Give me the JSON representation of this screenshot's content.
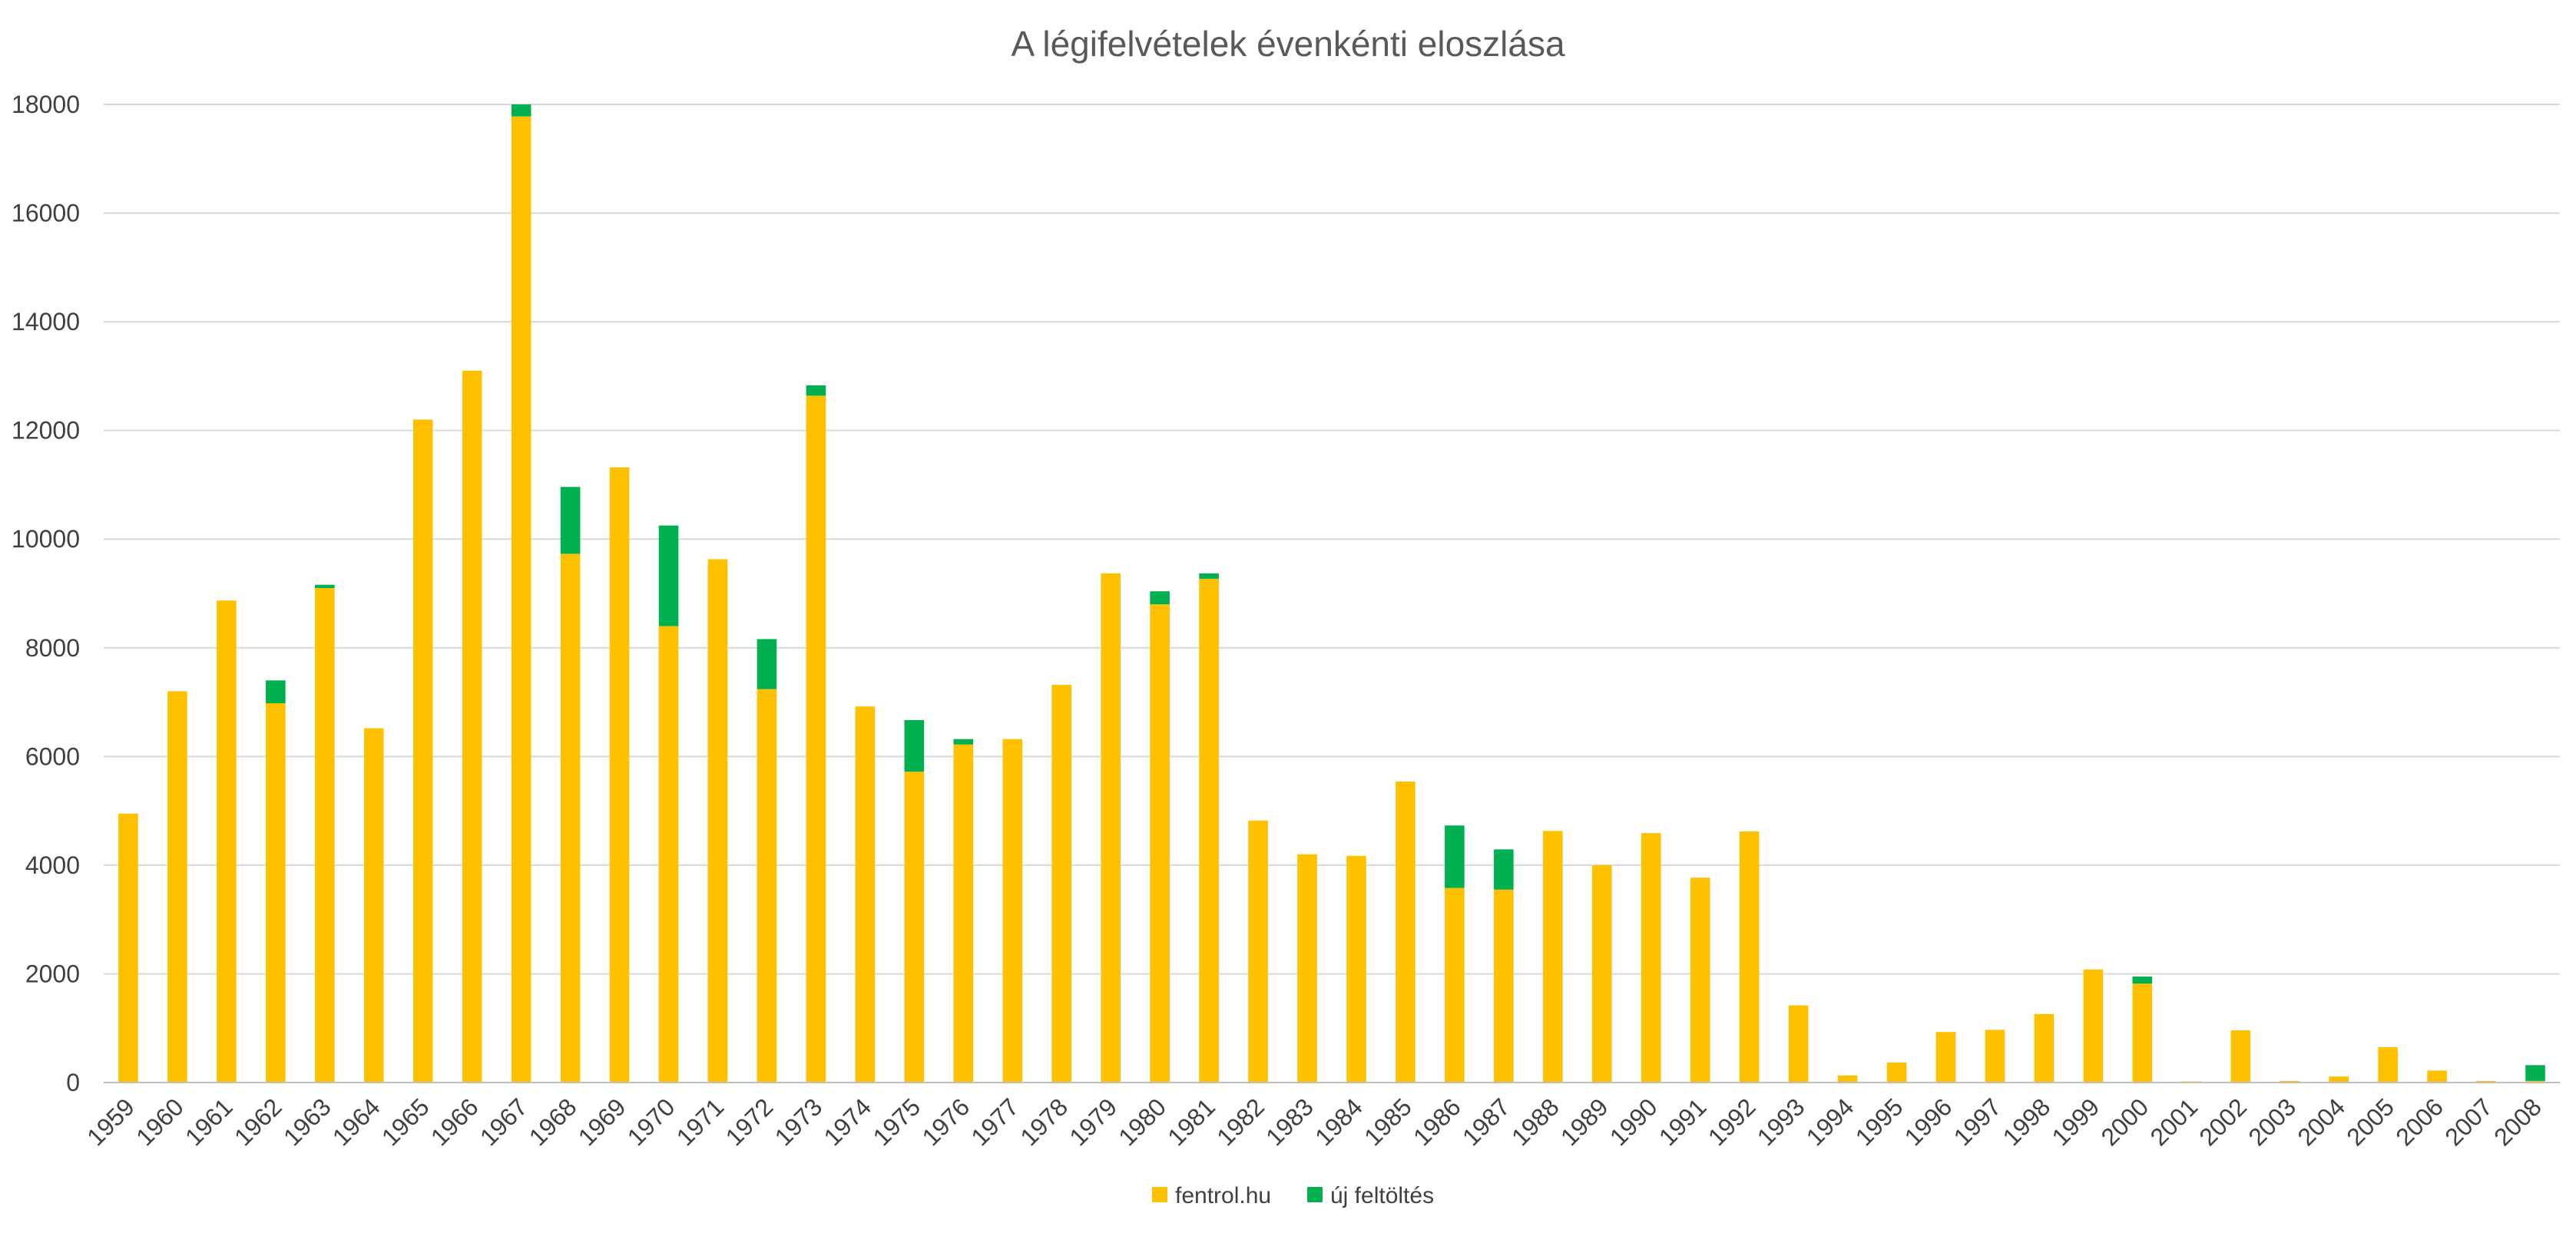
{
  "chart_data": {
    "type": "bar",
    "stacked": true,
    "title": "A légifelvételek évenkénti eloszlása",
    "xlabel": "",
    "ylabel": "",
    "ylim": [
      0,
      18000
    ],
    "yticks": [
      0,
      2000,
      4000,
      6000,
      8000,
      10000,
      12000,
      14000,
      16000,
      18000
    ],
    "grid": true,
    "legend_position": "bottom",
    "categories": [
      "1959",
      "1960",
      "1961",
      "1962",
      "1963",
      "1964",
      "1965",
      "1966",
      "1967",
      "1968",
      "1969",
      "1970",
      "1971",
      "1972",
      "1973",
      "1974",
      "1975",
      "1976",
      "1977",
      "1978",
      "1979",
      "1980",
      "1981",
      "1982",
      "1983",
      "1984",
      "1985",
      "1986",
      "1987",
      "1988",
      "1989",
      "1990",
      "1991",
      "1992",
      "1993",
      "1994",
      "1995",
      "1996",
      "1997",
      "1998",
      "1999",
      "2000",
      "2001",
      "2002",
      "2003",
      "2004",
      "2005",
      "2006",
      "2007",
      "2008"
    ],
    "series": [
      {
        "name": "fentrol.hu",
        "color": "#FFC000",
        "values": [
          4950,
          7200,
          8870,
          6980,
          9100,
          6520,
          12200,
          13100,
          17780,
          9730,
          11320,
          8400,
          9630,
          7240,
          12640,
          6920,
          5720,
          6220,
          6320,
          7320,
          9370,
          8800,
          9270,
          4820,
          4200,
          4170,
          5540,
          3580,
          3550,
          4630,
          4000,
          4590,
          3770,
          4620,
          1420,
          130,
          370,
          930,
          970,
          1260,
          2080,
          1820,
          20,
          960,
          30,
          110,
          650,
          220,
          30,
          30
        ]
      },
      {
        "name": "új feltöltés",
        "color": "#00B050",
        "values": [
          0,
          0,
          0,
          420,
          60,
          0,
          0,
          0,
          220,
          1230,
          0,
          1850,
          0,
          920,
          190,
          0,
          950,
          100,
          0,
          0,
          0,
          240,
          100,
          0,
          0,
          0,
          0,
          1150,
          740,
          0,
          0,
          0,
          0,
          0,
          0,
          0,
          0,
          0,
          0,
          0,
          0,
          130,
          0,
          0,
          0,
          0,
          0,
          0,
          0,
          290
        ]
      }
    ]
  }
}
